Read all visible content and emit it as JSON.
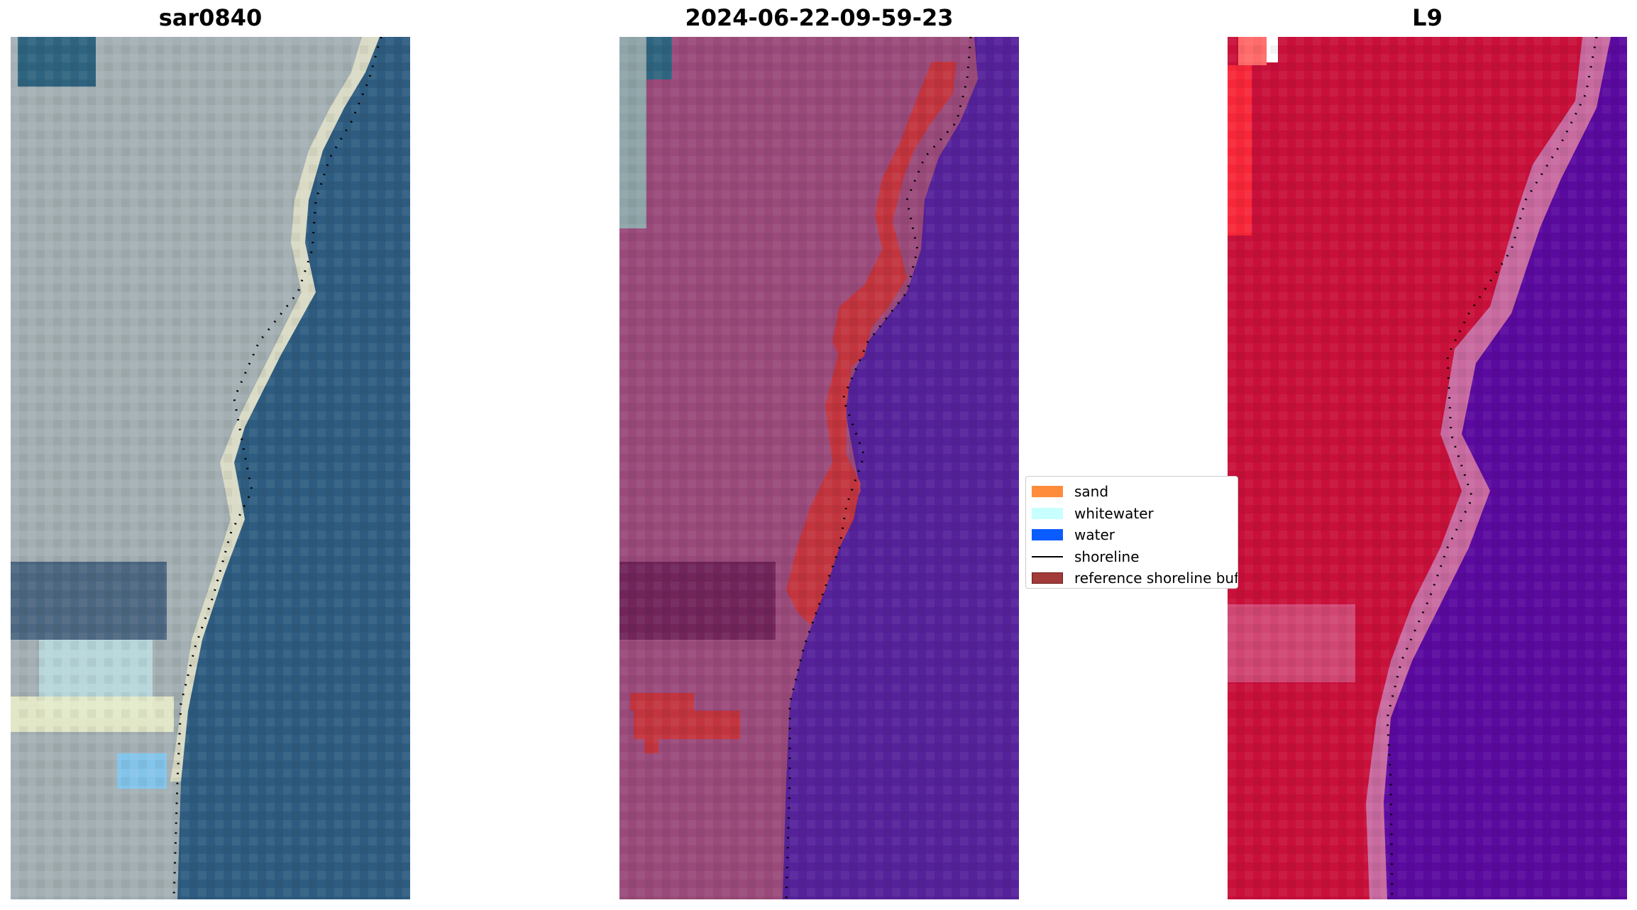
{
  "panels": [
    {
      "title": "sar0840"
    },
    {
      "title": "2024-06-22-09-59-23"
    },
    {
      "title": "L9"
    }
  ],
  "legend": {
    "items": [
      {
        "label": "sand",
        "kind": "patch",
        "color": "#ff8c3a"
      },
      {
        "label": "whitewater",
        "kind": "patch",
        "color": "#c8ffff"
      },
      {
        "label": "water",
        "kind": "patch",
        "color": "#0a5cff"
      },
      {
        "label": "shoreline",
        "kind": "line",
        "color": "#000000"
      },
      {
        "label": "reference shoreline buffer",
        "kind": "patch",
        "color": "#a33a3a"
      }
    ]
  },
  "colors": {
    "rgb_land": "#a3afb2",
    "rgb_water": "#2e5c80",
    "rgb_sand": "#dfe0c8",
    "classified_land": "#9a4a7a",
    "classified_water": "#55229a",
    "classified_buffer": "#c2353f",
    "nir_land": "#c8103a",
    "nir_water": "#5a0a9e",
    "nir_edge": "#c86aa0"
  }
}
